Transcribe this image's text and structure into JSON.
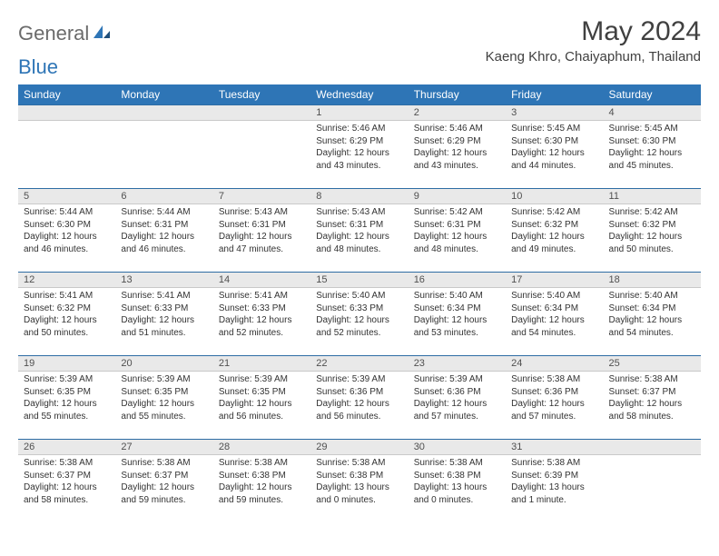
{
  "brand": {
    "part1": "General",
    "part2": "Blue"
  },
  "title": "May 2024",
  "location": "Kaeng Khro, Chaiyaphum, Thailand",
  "colors": {
    "header_bg": "#2e75b6",
    "daynum_bg": "#e9e9e9",
    "rule": "#2e6da4"
  },
  "weekdays": [
    "Sunday",
    "Monday",
    "Tuesday",
    "Wednesday",
    "Thursday",
    "Friday",
    "Saturday"
  ],
  "weeks": [
    [
      null,
      null,
      null,
      {
        "n": "1",
        "sr": "5:46 AM",
        "ss": "6:29 PM",
        "dl": "12 hours and 43 minutes."
      },
      {
        "n": "2",
        "sr": "5:46 AM",
        "ss": "6:29 PM",
        "dl": "12 hours and 43 minutes."
      },
      {
        "n": "3",
        "sr": "5:45 AM",
        "ss": "6:30 PM",
        "dl": "12 hours and 44 minutes."
      },
      {
        "n": "4",
        "sr": "5:45 AM",
        "ss": "6:30 PM",
        "dl": "12 hours and 45 minutes."
      }
    ],
    [
      {
        "n": "5",
        "sr": "5:44 AM",
        "ss": "6:30 PM",
        "dl": "12 hours and 46 minutes."
      },
      {
        "n": "6",
        "sr": "5:44 AM",
        "ss": "6:31 PM",
        "dl": "12 hours and 46 minutes."
      },
      {
        "n": "7",
        "sr": "5:43 AM",
        "ss": "6:31 PM",
        "dl": "12 hours and 47 minutes."
      },
      {
        "n": "8",
        "sr": "5:43 AM",
        "ss": "6:31 PM",
        "dl": "12 hours and 48 minutes."
      },
      {
        "n": "9",
        "sr": "5:42 AM",
        "ss": "6:31 PM",
        "dl": "12 hours and 48 minutes."
      },
      {
        "n": "10",
        "sr": "5:42 AM",
        "ss": "6:32 PM",
        "dl": "12 hours and 49 minutes."
      },
      {
        "n": "11",
        "sr": "5:42 AM",
        "ss": "6:32 PM",
        "dl": "12 hours and 50 minutes."
      }
    ],
    [
      {
        "n": "12",
        "sr": "5:41 AM",
        "ss": "6:32 PM",
        "dl": "12 hours and 50 minutes."
      },
      {
        "n": "13",
        "sr": "5:41 AM",
        "ss": "6:33 PM",
        "dl": "12 hours and 51 minutes."
      },
      {
        "n": "14",
        "sr": "5:41 AM",
        "ss": "6:33 PM",
        "dl": "12 hours and 52 minutes."
      },
      {
        "n": "15",
        "sr": "5:40 AM",
        "ss": "6:33 PM",
        "dl": "12 hours and 52 minutes."
      },
      {
        "n": "16",
        "sr": "5:40 AM",
        "ss": "6:34 PM",
        "dl": "12 hours and 53 minutes."
      },
      {
        "n": "17",
        "sr": "5:40 AM",
        "ss": "6:34 PM",
        "dl": "12 hours and 54 minutes."
      },
      {
        "n": "18",
        "sr": "5:40 AM",
        "ss": "6:34 PM",
        "dl": "12 hours and 54 minutes."
      }
    ],
    [
      {
        "n": "19",
        "sr": "5:39 AM",
        "ss": "6:35 PM",
        "dl": "12 hours and 55 minutes."
      },
      {
        "n": "20",
        "sr": "5:39 AM",
        "ss": "6:35 PM",
        "dl": "12 hours and 55 minutes."
      },
      {
        "n": "21",
        "sr": "5:39 AM",
        "ss": "6:35 PM",
        "dl": "12 hours and 56 minutes."
      },
      {
        "n": "22",
        "sr": "5:39 AM",
        "ss": "6:36 PM",
        "dl": "12 hours and 56 minutes."
      },
      {
        "n": "23",
        "sr": "5:39 AM",
        "ss": "6:36 PM",
        "dl": "12 hours and 57 minutes."
      },
      {
        "n": "24",
        "sr": "5:38 AM",
        "ss": "6:36 PM",
        "dl": "12 hours and 57 minutes."
      },
      {
        "n": "25",
        "sr": "5:38 AM",
        "ss": "6:37 PM",
        "dl": "12 hours and 58 minutes."
      }
    ],
    [
      {
        "n": "26",
        "sr": "5:38 AM",
        "ss": "6:37 PM",
        "dl": "12 hours and 58 minutes."
      },
      {
        "n": "27",
        "sr": "5:38 AM",
        "ss": "6:37 PM",
        "dl": "12 hours and 59 minutes."
      },
      {
        "n": "28",
        "sr": "5:38 AM",
        "ss": "6:38 PM",
        "dl": "12 hours and 59 minutes."
      },
      {
        "n": "29",
        "sr": "5:38 AM",
        "ss": "6:38 PM",
        "dl": "13 hours and 0 minutes."
      },
      {
        "n": "30",
        "sr": "5:38 AM",
        "ss": "6:38 PM",
        "dl": "13 hours and 0 minutes."
      },
      {
        "n": "31",
        "sr": "5:38 AM",
        "ss": "6:39 PM",
        "dl": "13 hours and 1 minute."
      },
      null
    ]
  ],
  "labels": {
    "sunrise": "Sunrise: ",
    "sunset": "Sunset: ",
    "daylight": "Daylight: "
  }
}
